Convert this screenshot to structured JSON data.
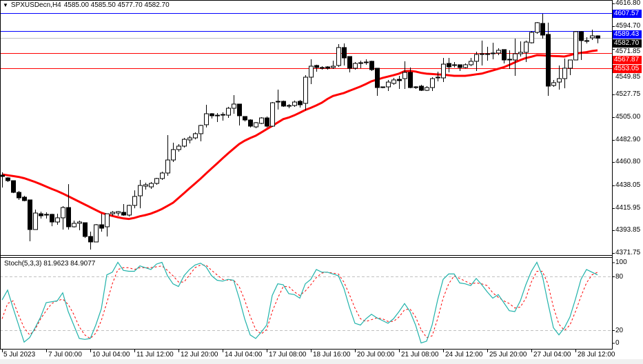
{
  "header": {
    "symbol_timeframe": "SPXUSDecn,H4",
    "ohlc": "4585.00 4585.50 4577.70 4582.70",
    "dropdown_icon": "triangle-down-icon"
  },
  "price_axis": {
    "range": [
      4371.75,
      4616.8
    ],
    "ticks": [
      "4616.80",
      "4594.70",
      "4571.85",
      "4549.85",
      "4527.75",
      "4505.00",
      "4482.90",
      "4460.80",
      "4438.05",
      "4415.95",
      "4393.85",
      "4371.75"
    ]
  },
  "levels": [
    {
      "label": "4607.57",
      "value": 4607.57,
      "color": "#0000ff"
    },
    {
      "label": "4589.43",
      "value": 4589.43,
      "color": "#0000ff"
    },
    {
      "label": "4582.70",
      "value": 4582.7,
      "color": "#000000",
      "line_color": "#c0c0c0"
    },
    {
      "label": "4567.87",
      "value": 4567.87,
      "color": "#ff0000"
    },
    {
      "label": "4553.05",
      "value": 4553.05,
      "color": "#ff0000"
    }
  ],
  "time_axis": {
    "labels": [
      {
        "text": "5 Jul 2023",
        "bar": 0
      },
      {
        "text": "7 Jul 00:00",
        "bar": 8
      },
      {
        "text": "10 Jul 04:00",
        "bar": 16
      },
      {
        "text": "11 Jul 12:00",
        "bar": 24
      },
      {
        "text": "12 Jul 20:00",
        "bar": 32
      },
      {
        "text": "14 Jul 04:00",
        "bar": 40
      },
      {
        "text": "17 Jul 08:00",
        "bar": 48
      },
      {
        "text": "18 Jul 16:00",
        "bar": 56
      },
      {
        "text": "20 Jul 00:00",
        "bar": 64
      },
      {
        "text": "21 Jul 08:00",
        "bar": 72
      },
      {
        "text": "24 Jul 12:00",
        "bar": 80
      },
      {
        "text": "25 Jul 20:00",
        "bar": 88
      },
      {
        "text": "27 Jul 04:00",
        "bar": 96
      },
      {
        "text": "28 Jul 12:00",
        "bar": 104
      }
    ]
  },
  "stochastic": {
    "title": "Stoch(5,3,3) 81.9623 84.9077",
    "levels": [
      "100",
      "80",
      "20",
      "0"
    ],
    "main_color": "#20b2aa",
    "signal_color": "#ff0000"
  },
  "chart_data": {
    "type": "candlestick",
    "colors": {
      "bull": "#ffffff",
      "bear": "#000000",
      "ma": "#ff0000"
    },
    "ylim": [
      4371.75,
      4616.8
    ],
    "candles": [
      [
        4448.2,
        4451.0,
        4436.1,
        4446.9
      ],
      [
        4445.5,
        4446.2,
        4441.5,
        4442.8
      ],
      [
        4442.8,
        4442.8,
        4430.6,
        4431.3
      ],
      [
        4431.3,
        4432.7,
        4423.9,
        4425.9
      ],
      [
        4426.6,
        4427.9,
        4422.5,
        4423.2
      ],
      [
        4423.9,
        4423.9,
        4383.3,
        4394.8
      ],
      [
        4394.8,
        4414.4,
        4394.8,
        4411.0
      ],
      [
        4410.3,
        4412.4,
        4405.6,
        4408.3
      ],
      [
        4409.7,
        4411.7,
        4405.6,
        4409.0
      ],
      [
        4409.7,
        4410.3,
        4398.1,
        4402.2
      ],
      [
        4402.2,
        4410.3,
        4399.5,
        4406.3
      ],
      [
        4406.3,
        4417.8,
        4394.8,
        4416.4
      ],
      [
        4416.4,
        4439.4,
        4394.8,
        4397.5
      ],
      [
        4397.5,
        4403.6,
        4396.8,
        4400.9
      ],
      [
        4400.9,
        4403.6,
        4394.1,
        4402.2
      ],
      [
        4401.5,
        4401.5,
        4386.6,
        4388.0
      ],
      [
        4388.0,
        4392.7,
        4375.1,
        4382.6
      ],
      [
        4382.6,
        4400.2,
        4382.6,
        4399.5
      ],
      [
        4399.5,
        4410.3,
        4392.7,
        4396.1
      ],
      [
        4397.5,
        4410.3,
        4388.0,
        4410.3
      ],
      [
        4410.3,
        4413.0,
        4408.3,
        4411.7
      ],
      [
        4411.0,
        4413.0,
        4408.3,
        4412.4
      ],
      [
        4411.7,
        4419.8,
        4408.3,
        4409.0
      ],
      [
        4409.0,
        4419.1,
        4407.6,
        4418.5
      ],
      [
        4418.5,
        4433.3,
        4415.7,
        4427.3
      ],
      [
        4427.9,
        4443.5,
        4415.7,
        4438.1
      ],
      [
        4437.4,
        4440.8,
        4434.0,
        4438.8
      ],
      [
        4436.7,
        4441.5,
        4434.7,
        4440.1
      ],
      [
        4440.1,
        4445.5,
        4438.8,
        4444.9
      ],
      [
        4444.9,
        4451.6,
        4443.5,
        4450.3
      ],
      [
        4450.3,
        4487.5,
        4447.6,
        4463.1
      ],
      [
        4463.1,
        4480.1,
        4461.1,
        4473.3
      ],
      [
        4473.3,
        4478.7,
        4471.3,
        4476.7
      ],
      [
        4476.7,
        4484.8,
        4475.3,
        4483.4
      ],
      [
        4482.8,
        4486.8,
        4479.4,
        4484.8
      ],
      [
        4484.8,
        4490.2,
        4483.4,
        4488.9
      ],
      [
        4488.9,
        4497.7,
        4481.4,
        4497.0
      ],
      [
        4497.7,
        4517.3,
        4495.0,
        4508.5
      ],
      [
        4508.5,
        4509.2,
        4503.8,
        4506.5
      ],
      [
        4507.1,
        4509.2,
        4500.4,
        4506.5
      ],
      [
        4507.1,
        4509.9,
        4501.7,
        4507.8
      ],
      [
        4507.1,
        4515.3,
        4504.4,
        4513.9
      ],
      [
        4513.9,
        4526.8,
        4508.5,
        4518.0
      ],
      [
        4518.0,
        4518.0,
        4497.0,
        4506.5
      ],
      [
        4505.8,
        4505.8,
        4501.0,
        4502.4
      ],
      [
        4502.4,
        4503.1,
        4495.0,
        4496.3
      ],
      [
        4495.6,
        4500.4,
        4494.3,
        4499.7
      ],
      [
        4499.0,
        4505.1,
        4498.3,
        4504.4
      ],
      [
        4504.4,
        4505.8,
        4495.0,
        4496.3
      ],
      [
        4496.3,
        4520.0,
        4495.6,
        4519.3
      ],
      [
        4520.7,
        4532.2,
        4512.6,
        4520.0
      ],
      [
        4520.7,
        4521.4,
        4515.3,
        4516.0
      ],
      [
        4516.6,
        4518.0,
        4513.9,
        4516.0
      ],
      [
        4516.6,
        4521.4,
        4515.3,
        4520.0
      ],
      [
        4520.7,
        4522.0,
        4514.6,
        4517.3
      ],
      [
        4518.7,
        4546.4,
        4511.9,
        4544.4
      ],
      [
        4544.4,
        4562.0,
        4537.6,
        4555.2
      ],
      [
        4555.9,
        4556.6,
        4549.8,
        4553.9
      ],
      [
        4553.9,
        4555.2,
        4551.8,
        4553.2
      ],
      [
        4554.5,
        4555.2,
        4551.8,
        4553.2
      ],
      [
        4553.9,
        4560.6,
        4552.5,
        4555.2
      ],
      [
        4555.9,
        4576.9,
        4554.5,
        4573.5
      ],
      [
        4573.5,
        4577.5,
        4555.9,
        4563.3
      ],
      [
        4564.7,
        4564.7,
        4549.1,
        4553.2
      ],
      [
        4553.2,
        4559.3,
        4551.8,
        4557.9
      ],
      [
        4557.9,
        4560.6,
        4553.2,
        4558.6
      ],
      [
        4558.6,
        4562.0,
        4556.6,
        4559.3
      ],
      [
        4560.0,
        4560.6,
        4550.5,
        4551.8
      ],
      [
        4553.2,
        4553.2,
        4526.1,
        4534.2
      ],
      [
        4534.9,
        4534.9,
        4533.5,
        4534.2
      ],
      [
        4534.9,
        4541.7,
        4530.8,
        4539.6
      ],
      [
        4538.3,
        4543.7,
        4536.9,
        4541.7
      ],
      [
        4542.3,
        4545.7,
        4532.9,
        4541.0
      ],
      [
        4543.0,
        4560.0,
        4532.9,
        4549.1
      ],
      [
        4549.1,
        4553.9,
        4533.5,
        4534.2
      ],
      [
        4534.9,
        4535.6,
        4532.9,
        4534.2
      ],
      [
        4535.6,
        4536.9,
        4530.8,
        4531.5
      ],
      [
        4531.5,
        4535.6,
        4530.8,
        4534.2
      ],
      [
        4534.2,
        4544.4,
        4530.8,
        4543.0
      ],
      [
        4543.7,
        4549.8,
        4540.3,
        4544.4
      ],
      [
        4543.7,
        4563.3,
        4539.6,
        4557.2
      ],
      [
        4557.9,
        4563.3,
        4549.1,
        4554.5
      ],
      [
        4555.9,
        4559.3,
        4553.9,
        4556.6
      ],
      [
        4556.6,
        4556.6,
        4550.5,
        4553.9
      ],
      [
        4553.9,
        4557.9,
        4553.2,
        4556.6
      ],
      [
        4556.6,
        4563.3,
        4555.2,
        4560.0
      ],
      [
        4560.0,
        4569.4,
        4550.5,
        4566.7
      ],
      [
        4566.7,
        4580.3,
        4555.9,
        4567.4
      ],
      [
        4566.7,
        4574.2,
        4560.6,
        4567.4
      ],
      [
        4567.4,
        4578.2,
        4562.0,
        4568.1
      ],
      [
        4568.1,
        4572.8,
        4566.0,
        4570.8
      ],
      [
        4571.5,
        4571.5,
        4557.9,
        4561.3
      ],
      [
        4561.3,
        4570.8,
        4552.5,
        4562.0
      ],
      [
        4561.3,
        4582.3,
        4545.7,
        4567.4
      ],
      [
        4567.4,
        4579.6,
        4564.7,
        4568.8
      ],
      [
        4568.8,
        4580.3,
        4559.3,
        4578.9
      ],
      [
        4578.2,
        4589.7,
        4577.5,
        4588.4
      ],
      [
        4588.4,
        4598.5,
        4587.0,
        4597.9
      ],
      [
        4597.2,
        4606.7,
        4582.3,
        4585.7
      ],
      [
        4586.4,
        4597.9,
        4526.1,
        4535.6
      ],
      [
        4536.3,
        4541.7,
        4534.9,
        4539.0
      ],
      [
        4539.6,
        4555.9,
        4532.2,
        4543.0
      ],
      [
        4543.0,
        4562.7,
        4533.5,
        4553.2
      ],
      [
        4553.2,
        4561.3,
        4546.4,
        4561.3
      ],
      [
        4561.3,
        4589.7,
        4561.3,
        4589.1
      ],
      [
        4589.1,
        4589.7,
        4561.3,
        4580.3
      ],
      [
        4579.6,
        4583.6,
        4577.5,
        4580.3
      ],
      [
        4583.0,
        4591.1,
        4580.9,
        4585.0
      ],
      [
        4585.0,
        4585.5,
        4577.7,
        4582.7
      ]
    ],
    "moving_average": [
      4448.9,
      4448.1,
      4447.3,
      4446.5,
      4445.2,
      4443.4,
      4441.5,
      4439.3,
      4437.0,
      4434.7,
      4432.6,
      4430.2,
      4427.5,
      4424.8,
      4422.1,
      4419.4,
      4416.7,
      4414.0,
      4411.3,
      4409.5,
      4408.2,
      4406.9,
      4405.7,
      4405.2,
      4406.2,
      4407.8,
      4409.0,
      4410.5,
      4412.6,
      4415.0,
      4418.0,
      4421.0,
      4425.8,
      4430.5,
      4435.3,
      4440.0,
      4444.7,
      4449.8,
      4454.8,
      4459.7,
      4464.7,
      4469.6,
      4474.2,
      4478.7,
      4482.0,
      4484.6,
      4486.9,
      4490.1,
      4493.4,
      4496.6,
      4499.9,
      4503.2,
      4504.8,
      4506.9,
      4509.5,
      4512.2,
      4514.3,
      4516.7,
      4519.3,
      4523.0,
      4525.9,
      4527.4,
      4528.9,
      4531.0,
      4533.1,
      4535.2,
      4537.7,
      4540.4,
      4542.0,
      4543.6,
      4545.0,
      4546.3,
      4547.9,
      4550.3,
      4550.5,
      4549.9,
      4548.6,
      4547.8,
      4547.5,
      4547.1,
      4546.9,
      4546.3,
      4545.7,
      4545.7,
      4545.7,
      4546.4,
      4547.2,
      4547.9,
      4549.5,
      4551.0,
      4552.6,
      4554.2,
      4556.5,
      4558.9,
      4561.2,
      4563.2,
      4564.5,
      4566.0,
      4565.8,
      4565.5,
      4565.2,
      4565.0,
      4564.7,
      4566.0,
      4567.5,
      4568.3,
      4569.0,
      4570.1,
      4570.8
    ],
    "stoch_ylim": [
      0,
      100
    ],
    "stoch_main": [
      54,
      65,
      45,
      26,
      7,
      12,
      23,
      35,
      51,
      52,
      53,
      62,
      41,
      26,
      11,
      10,
      11,
      26,
      44,
      82,
      85,
      96,
      87,
      86,
      86,
      92,
      90,
      88,
      94,
      96,
      81,
      72,
      69,
      81,
      88,
      93,
      95,
      91,
      81,
      76,
      75,
      77,
      76,
      56,
      33,
      15,
      11,
      18,
      26,
      59,
      72,
      71,
      61,
      60,
      56,
      72,
      77,
      88,
      85,
      85,
      83,
      81,
      67,
      46,
      28,
      26,
      33,
      38,
      34,
      31,
      28,
      33,
      41,
      50,
      41,
      26,
      6,
      8,
      26,
      54,
      77,
      83,
      83,
      73,
      72,
      70,
      78,
      71,
      63,
      56,
      60,
      51,
      42,
      41,
      53,
      71,
      86,
      96,
      81,
      51,
      23,
      15,
      23,
      35,
      55,
      77,
      88,
      85,
      81.9623
    ],
    "stoch_signal": [
      33,
      50,
      53,
      37,
      23,
      15,
      21,
      33,
      42,
      50,
      53,
      55,
      49,
      38,
      24,
      15,
      11,
      17,
      31,
      51,
      72,
      88,
      90,
      90,
      88,
      90,
      90,
      90,
      91,
      92,
      87,
      81,
      74,
      74,
      82,
      90,
      93,
      93,
      87,
      82,
      77,
      76,
      76,
      69,
      54,
      36,
      21,
      16,
      21,
      41,
      56,
      69,
      69,
      63,
      59,
      64,
      71,
      79,
      84,
      85,
      84,
      83,
      74,
      60,
      45,
      33,
      30,
      32,
      34,
      33,
      30,
      30,
      35,
      43,
      44,
      35,
      21,
      12,
      14,
      33,
      56,
      72,
      81,
      78,
      75,
      72,
      73,
      72,
      70,
      62,
      57,
      53,
      50,
      45,
      46,
      56,
      74,
      86,
      86,
      72,
      46,
      27,
      20,
      26,
      41,
      58,
      73,
      82,
      84.9077
    ]
  }
}
